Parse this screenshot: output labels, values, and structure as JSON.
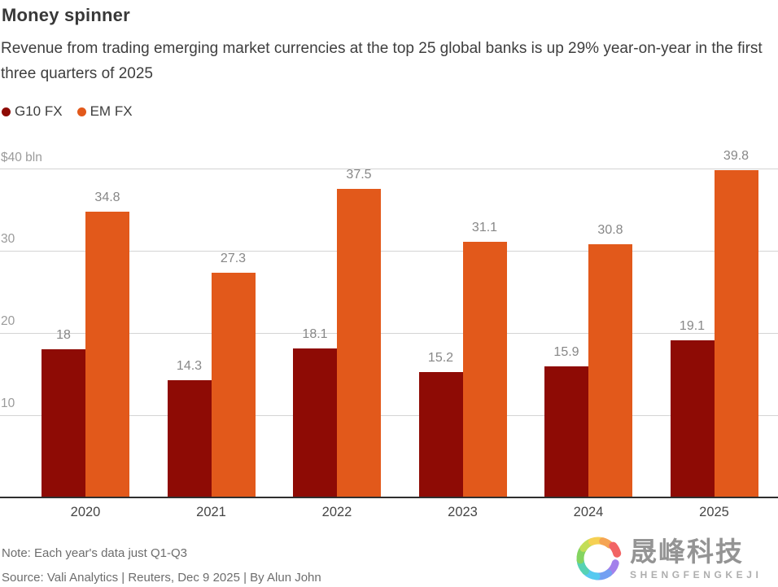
{
  "header": {
    "title": "Money spinner",
    "subtitle": "Revenue from trading emerging market currencies at the top 25 global banks is up 29% year-on-year in the first three quarters of 2025"
  },
  "legend": [
    {
      "label": "G10 FX",
      "color": "#8e0b05"
    },
    {
      "label": "EM FX",
      "color": "#e2591b"
    }
  ],
  "chart_data": {
    "type": "bar",
    "categories": [
      "2020",
      "2021",
      "2022",
      "2023",
      "2024",
      "2025"
    ],
    "series": [
      {
        "name": "G10 FX",
        "color": "#8e0b05",
        "values": [
          18,
          14.3,
          18.1,
          15.2,
          15.9,
          19.1
        ]
      },
      {
        "name": "EM FX",
        "color": "#e2591b",
        "values": [
          34.8,
          27.3,
          37.5,
          31.1,
          30.8,
          39.8
        ]
      }
    ],
    "title": "Money spinner",
    "xlabel": "",
    "ylabel": "$40 bln",
    "ylim": [
      0,
      40
    ],
    "yticks": [
      10,
      20,
      30,
      40
    ],
    "grid": true,
    "legend_position": "top-left",
    "value_labels": true
  },
  "footer": {
    "note": "Note: Each year's data just Q1-Q3",
    "source": "Source: Vali Analytics | Reuters, Dec 9 2025 | By Alun John"
  },
  "watermark": {
    "cjk": "晟峰科技",
    "latin": "SHENGFENGKEJI"
  },
  "colors": {
    "grid": "#d4d4d4",
    "axis": "#2f2f2f",
    "value_label": "#878787",
    "tick_label": "#9b9b9b"
  }
}
